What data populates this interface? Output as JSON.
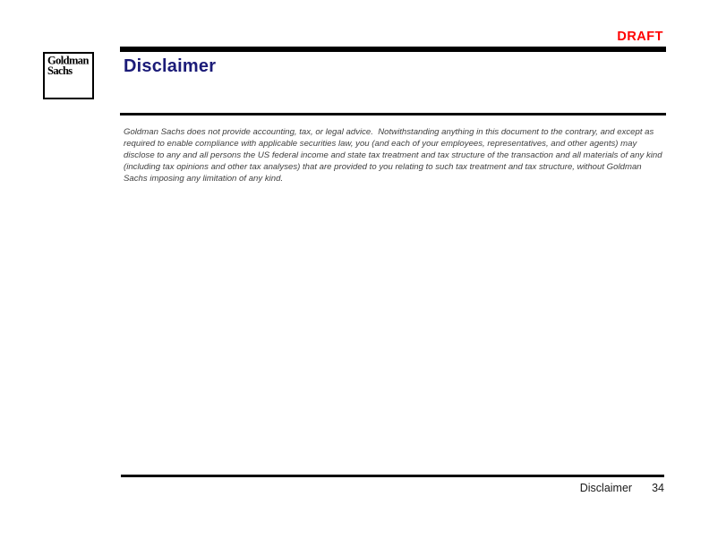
{
  "page": {
    "draft_label": "DRAFT",
    "title": "Disclaimer"
  },
  "logo": {
    "line1": "Goldman",
    "line2": "Sachs"
  },
  "disclaimer": {
    "lines": [
      "Goldman Sachs does not provide accounting, tax, or legal advice.  Notwithstanding anything in this document to the contrary, and except as",
      "required to enable compliance with applicable securities law, you (and each of your employees, representatives, and other agents) may",
      "disclose to any and all persons the US federal income and state tax treatment and tax structure of the transaction and all materials of any kind",
      "(including tax opinions and other tax analyses) that are provided to you relating to such tax treatment and tax structure, without Goldman",
      "Sachs imposing any limitation of any kind."
    ]
  },
  "footer": {
    "section_label": "Disclaimer",
    "page_number": "34"
  },
  "colors": {
    "draft_red": "#FF0000",
    "title_navy": "#1B1B78",
    "body_gray": "#3F3F3F",
    "rule_black": "#000000"
  }
}
